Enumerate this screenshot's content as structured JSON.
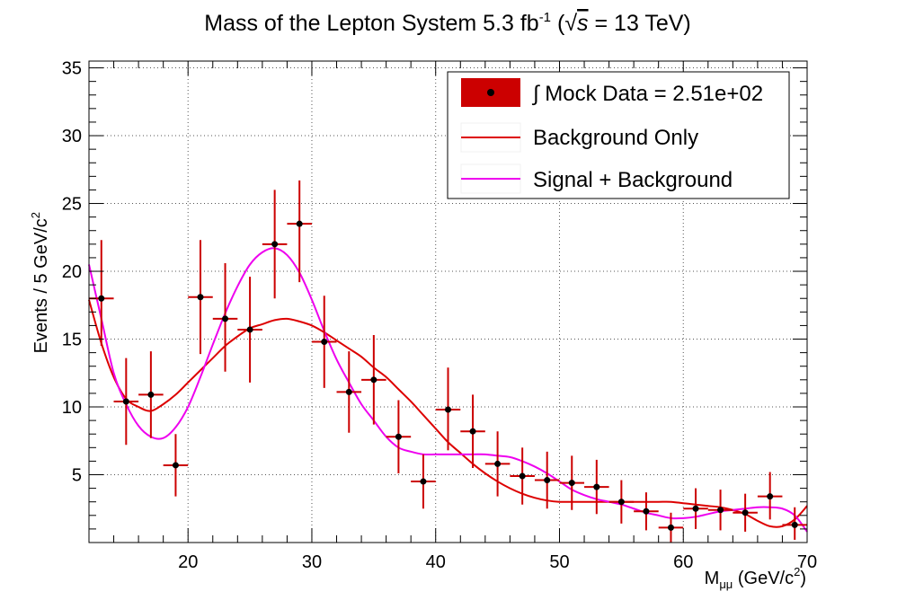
{
  "chart_data": {
    "type": "scatter",
    "title": {
      "main": "Mass of the Lepton System 5.3 fb",
      "sup": "-1",
      "open": " (",
      "sqrt": "√",
      "s": "s",
      "rest": " = 13 TeV)"
    },
    "xlabel": {
      "base": "M",
      "sub": "μμ",
      "unit": " (GeV/c",
      "sup": "2",
      "close": ")"
    },
    "ylabel": {
      "base": "Events / 5 GeV/c",
      "sup": "2"
    },
    "xlim": [
      12,
      70
    ],
    "ylim": [
      0,
      35.5
    ],
    "xticks": [
      20,
      30,
      40,
      50,
      60,
      70
    ],
    "yticks": [
      5,
      10,
      15,
      20,
      25,
      30,
      35
    ],
    "grid": true,
    "legend_placement": "top-right",
    "legend": [
      {
        "label": "∫ Mock Data = 2.51e+02",
        "kind": "data"
      },
      {
        "label": "Background Only",
        "kind": "bkg"
      },
      {
        "label": "Signal + Background",
        "kind": "sig"
      }
    ],
    "colors": {
      "data_marker": "#000000",
      "data_error": "#cc0000",
      "background": "#dd0000",
      "signal_plus_background": "#ee00ee",
      "legend_fill": "#cc0000",
      "grid": "#555555"
    },
    "data": {
      "x": [
        13,
        15,
        17,
        19,
        21,
        23,
        25,
        27,
        29,
        31,
        33,
        35,
        37,
        39,
        41,
        43,
        45,
        47,
        49,
        51,
        53,
        55,
        57,
        59,
        61,
        63,
        65,
        67,
        69
      ],
      "y": [
        18.0,
        10.4,
        10.9,
        5.7,
        18.1,
        16.5,
        15.7,
        22.0,
        23.5,
        14.8,
        11.1,
        12.0,
        7.8,
        4.5,
        9.8,
        8.2,
        5.8,
        4.9,
        4.6,
        4.4,
        4.1,
        3.0,
        2.3,
        1.1,
        2.5,
        2.4,
        2.2,
        3.4,
        1.3
      ],
      "y_err_low": [
        3.5,
        3.2,
        3.2,
        2.3,
        4.2,
        3.9,
        3.9,
        4.0,
        4.3,
        3.4,
        3.0,
        3.3,
        2.7,
        2.0,
        3.0,
        2.7,
        2.4,
        2.1,
        2.1,
        2.0,
        2.0,
        1.6,
        1.4,
        1.1,
        1.5,
        1.5,
        1.4,
        1.7,
        1.1
      ],
      "y_err_high": [
        4.3,
        3.2,
        3.2,
        2.3,
        4.2,
        4.1,
        3.9,
        4.0,
        3.2,
        3.4,
        3.0,
        3.3,
        2.7,
        2.0,
        3.1,
        2.7,
        2.4,
        2.1,
        2.1,
        2.0,
        2.0,
        1.6,
        1.4,
        1.1,
        1.5,
        1.5,
        1.4,
        1.8,
        1.3
      ],
      "x_half_width": 1
    },
    "series": [
      {
        "name": "Background Only",
        "x": [
          12,
          13,
          14,
          15,
          16,
          17,
          18,
          19,
          20,
          21,
          22,
          23,
          24,
          25,
          26,
          27,
          28,
          29,
          30,
          31,
          32,
          33,
          34,
          35,
          36,
          37,
          38,
          39,
          40,
          41,
          42,
          43,
          44,
          45,
          46,
          47,
          48,
          49,
          50,
          51,
          52,
          53,
          54,
          55,
          56,
          57,
          58,
          59,
          60,
          61,
          62,
          63,
          64,
          65,
          66,
          67,
          68,
          69,
          70
        ],
        "y": [
          17.9,
          14.7,
          12.2,
          10.6,
          10.0,
          9.7,
          10.2,
          10.9,
          11.8,
          12.7,
          13.6,
          14.5,
          15.2,
          15.8,
          16.1,
          16.4,
          16.5,
          16.3,
          16.0,
          15.5,
          14.9,
          14.3,
          13.7,
          12.9,
          12.2,
          11.3,
          10.4,
          9.4,
          8.4,
          7.4,
          6.6,
          5.8,
          5.1,
          4.5,
          4.0,
          3.6,
          3.3,
          3.1,
          3.0,
          3.0,
          3.0,
          3.0,
          3.0,
          3.0,
          3.0,
          3.0,
          3.0,
          3.0,
          2.9,
          2.8,
          2.7,
          2.6,
          2.4,
          2.1,
          1.6,
          1.2,
          1.2,
          1.7,
          2.7
        ]
      },
      {
        "name": "Signal + Background",
        "x": [
          12,
          13,
          14,
          15,
          16,
          17,
          18,
          19,
          20,
          21,
          22,
          23,
          24,
          25,
          26,
          27,
          28,
          29,
          30,
          31,
          32,
          33,
          34,
          35,
          36,
          37,
          38,
          39,
          40,
          41,
          42,
          43,
          44,
          45,
          46,
          47,
          48,
          49,
          50,
          51,
          52,
          53,
          54,
          55,
          56,
          57,
          58,
          59,
          60,
          61,
          62,
          63,
          64,
          65,
          66,
          67,
          68,
          69,
          70
        ],
        "y": [
          20.5,
          16.5,
          12.5,
          10.2,
          8.6,
          7.8,
          7.7,
          8.5,
          10.0,
          12.2,
          14.6,
          16.9,
          18.9,
          20.5,
          21.4,
          21.7,
          21.2,
          19.9,
          17.9,
          15.6,
          13.5,
          11.8,
          10.2,
          9.0,
          7.8,
          7.0,
          6.7,
          6.5,
          6.5,
          6.5,
          6.5,
          6.5,
          6.5,
          6.4,
          6.3,
          6.0,
          5.6,
          5.1,
          4.5,
          3.9,
          3.5,
          3.2,
          3.0,
          2.8,
          2.5,
          2.2,
          2.0,
          1.8,
          1.8,
          1.9,
          2.1,
          2.3,
          2.4,
          2.5,
          2.6,
          2.6,
          2.5,
          2.0,
          0.8
        ]
      }
    ]
  }
}
